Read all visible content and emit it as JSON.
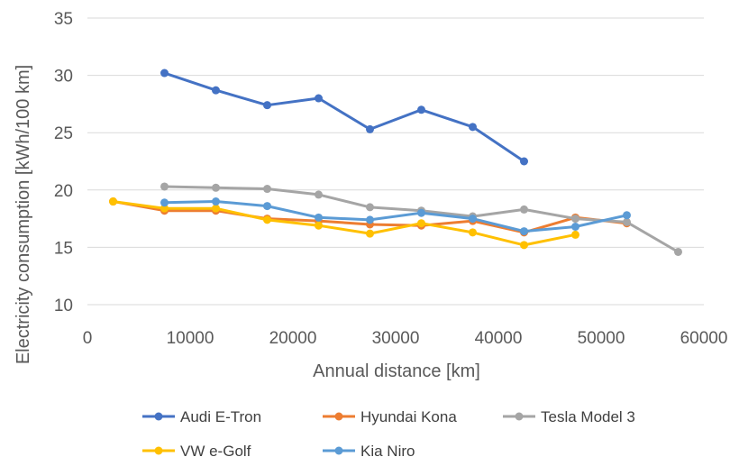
{
  "chart_data": {
    "type": "line",
    "xlabel": "Annual distance [km]",
    "ylabel": "Electricity consumption [kWh/100 km]",
    "xlim": [
      0,
      60000
    ],
    "ylim": [
      10,
      35
    ],
    "xticks": [
      0,
      10000,
      20000,
      30000,
      40000,
      50000,
      60000
    ],
    "yticks": [
      10,
      15,
      20,
      25,
      30,
      35
    ],
    "grid": "horizontal",
    "legend_position": "bottom",
    "series": [
      {
        "name": "Audi E-Tron",
        "color": "#4472C4",
        "points": [
          [
            7500,
            30.2
          ],
          [
            12500,
            28.7
          ],
          [
            17500,
            27.4
          ],
          [
            22500,
            28.0
          ],
          [
            27500,
            25.3
          ],
          [
            32500,
            27.0
          ],
          [
            37500,
            25.5
          ],
          [
            42500,
            22.5
          ]
        ]
      },
      {
        "name": "Hyundai Kona",
        "color": "#ED7D31",
        "points": [
          [
            2500,
            19.0
          ],
          [
            7500,
            18.2
          ],
          [
            12500,
            18.2
          ],
          [
            17500,
            17.5
          ],
          [
            22500,
            17.3
          ],
          [
            27500,
            17.0
          ],
          [
            32500,
            16.9
          ],
          [
            37500,
            17.3
          ],
          [
            42500,
            16.3
          ],
          [
            47500,
            17.6
          ],
          [
            52500,
            17.1
          ]
        ]
      },
      {
        "name": "Tesla Model 3",
        "color": "#A5A5A5",
        "points": [
          [
            7500,
            20.3
          ],
          [
            12500,
            20.2
          ],
          [
            17500,
            20.1
          ],
          [
            22500,
            19.6
          ],
          [
            27500,
            18.5
          ],
          [
            32500,
            18.2
          ],
          [
            37500,
            17.7
          ],
          [
            42500,
            18.3
          ],
          [
            47500,
            17.5
          ],
          [
            52500,
            17.2
          ],
          [
            57500,
            14.6
          ]
        ]
      },
      {
        "name": "VW e-Golf",
        "color": "#FFC000",
        "points": [
          [
            2500,
            19.0
          ],
          [
            7500,
            18.4
          ],
          [
            12500,
            18.4
          ],
          [
            17500,
            17.4
          ],
          [
            22500,
            16.9
          ],
          [
            27500,
            16.2
          ],
          [
            32500,
            17.1
          ],
          [
            37500,
            16.3
          ],
          [
            42500,
            15.2
          ],
          [
            47500,
            16.1
          ]
        ]
      },
      {
        "name": "Kia Niro",
        "color": "#5B9BD5",
        "points": [
          [
            7500,
            18.9
          ],
          [
            12500,
            19.0
          ],
          [
            17500,
            18.6
          ],
          [
            22500,
            17.6
          ],
          [
            27500,
            17.4
          ],
          [
            32500,
            18.0
          ],
          [
            37500,
            17.5
          ],
          [
            42500,
            16.4
          ],
          [
            47500,
            16.8
          ],
          [
            52500,
            17.8
          ]
        ]
      }
    ]
  }
}
